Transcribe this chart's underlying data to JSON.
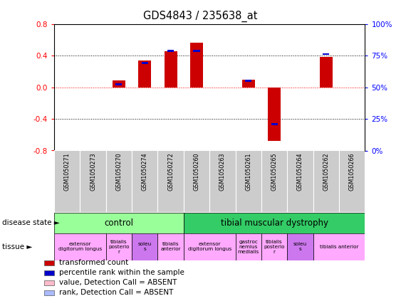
{
  "title": "GDS4843 / 235638_at",
  "samples": [
    "GSM1050271",
    "GSM1050273",
    "GSM1050270",
    "GSM1050274",
    "GSM1050272",
    "GSM1050260",
    "GSM1050263",
    "GSM1050261",
    "GSM1050265",
    "GSM1050264",
    "GSM1050262",
    "GSM1050266"
  ],
  "red_values": [
    0.0,
    0.0,
    0.09,
    0.34,
    0.46,
    0.56,
    0.0,
    0.1,
    -0.68,
    0.0,
    0.38,
    0.0
  ],
  "blue_values": [
    null,
    null,
    0.04,
    0.31,
    0.46,
    0.46,
    null,
    0.08,
    -0.47,
    null,
    0.42,
    null
  ],
  "ylim": [
    -0.8,
    0.8
  ],
  "yticks_left": [
    -0.8,
    -0.4,
    0.0,
    0.4,
    0.8
  ],
  "yticks_right": [
    0,
    25,
    50,
    75,
    100
  ],
  "red_color": "#cc0000",
  "blue_color": "#0000cc",
  "control_color": "#99ff99",
  "dystrophy_color": "#33cc66",
  "label_bg_color": "#cccccc",
  "tissue_light_color": "#ffaaff",
  "tissue_bold_color": "#bb66ff"
}
